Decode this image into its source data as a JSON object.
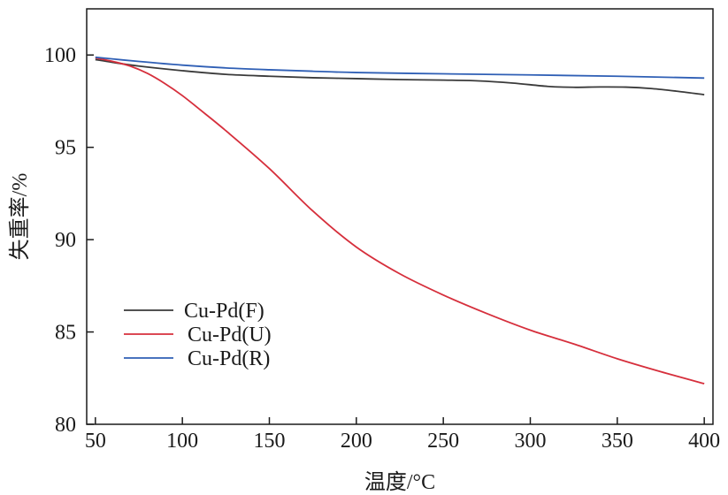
{
  "chart_data": {
    "type": "line",
    "title": "",
    "xlabel": "温度/°C",
    "ylabel": "失重率/%",
    "xlim": [
      45,
      405
    ],
    "ylim": [
      80,
      102.5
    ],
    "xticks": [
      50,
      100,
      150,
      200,
      250,
      300,
      350,
      400
    ],
    "yticks": [
      80,
      85,
      90,
      95,
      100
    ],
    "grid": false,
    "legend_position": "center-left",
    "series": [
      {
        "name": "Cu-Pd(F)",
        "color": "#3a3a3a",
        "x": [
          50,
          60,
          75,
          100,
          125,
          150,
          175,
          200,
          225,
          250,
          270,
          290,
          310,
          325,
          340,
          355,
          370,
          385,
          400
        ],
        "y": [
          99.75,
          99.6,
          99.4,
          99.15,
          98.95,
          98.85,
          98.77,
          98.72,
          98.67,
          98.64,
          98.6,
          98.48,
          98.3,
          98.25,
          98.27,
          98.26,
          98.18,
          98.03,
          97.85
        ]
      },
      {
        "name": "Cu-Pd(U)",
        "color": "#d62f3c",
        "x": [
          50,
          60,
          70,
          80,
          90,
          100,
          110,
          125,
          150,
          175,
          200,
          225,
          250,
          275,
          300,
          325,
          350,
          375,
          400
        ],
        "y": [
          99.85,
          99.65,
          99.4,
          99.0,
          98.45,
          97.8,
          97.05,
          95.9,
          93.85,
          91.55,
          89.6,
          88.15,
          87.0,
          86.0,
          85.1,
          84.35,
          83.55,
          82.85,
          82.2
        ]
      },
      {
        "name": "Cu-Pd(R)",
        "color": "#2f5fb5",
        "x": [
          50,
          75,
          100,
          125,
          150,
          175,
          200,
          250,
          300,
          350,
          400
        ],
        "y": [
          99.88,
          99.65,
          99.45,
          99.3,
          99.2,
          99.12,
          99.05,
          98.98,
          98.92,
          98.85,
          98.75
        ]
      }
    ]
  }
}
